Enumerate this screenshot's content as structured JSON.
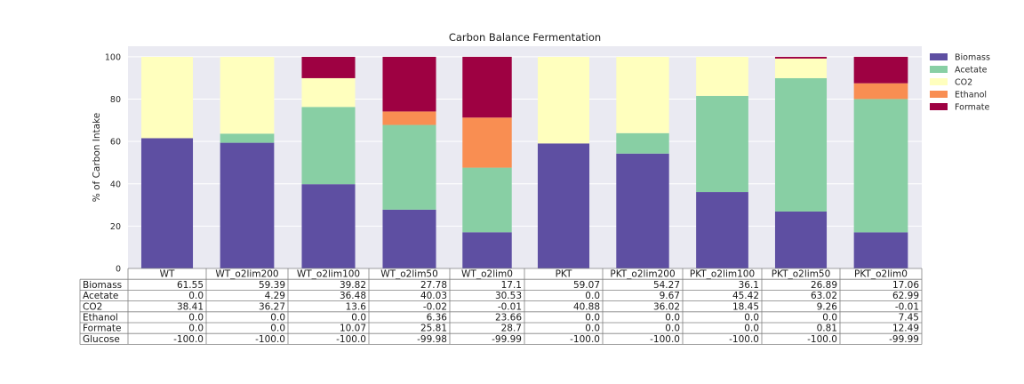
{
  "chart_data": {
    "type": "bar",
    "stacked": true,
    "title": "Carbon Balance Fermentation",
    "ylabel": "% of Carbon Intake",
    "ylim": [
      0,
      105
    ],
    "yticks": [
      "0",
      "20",
      "40",
      "60",
      "80",
      "100"
    ],
    "grid": true,
    "legend_position": "outside-top-right",
    "categories": [
      "WT",
      "WT_o2lim200",
      "WT_o2lim100",
      "WT_o2lim50",
      "WT_o2lim0",
      "PKT",
      "PKT_o2lim200",
      "PKT_o2lim100",
      "PKT_o2lim50",
      "PKT_o2lim0"
    ],
    "series": [
      {
        "name": "Biomass",
        "color": "#5e4fa2",
        "values": [
          61.55,
          59.39,
          39.82,
          27.78,
          17.1,
          59.07,
          54.27,
          36.1,
          26.89,
          17.06
        ]
      },
      {
        "name": "Acetate",
        "color": "#88cfa4",
        "values": [
          0.0,
          4.29,
          36.48,
          40.03,
          30.53,
          0.0,
          9.67,
          45.42,
          63.02,
          62.99
        ]
      },
      {
        "name": "CO2",
        "color": "#ffffbe",
        "values": [
          38.41,
          36.27,
          13.6,
          -0.02,
          -0.01,
          40.88,
          36.02,
          18.45,
          9.26,
          -0.01
        ]
      },
      {
        "name": "Ethanol",
        "color": "#f98e52",
        "values": [
          0.0,
          0.0,
          0.0,
          6.36,
          23.66,
          0.0,
          0.0,
          0.0,
          0.0,
          7.45
        ]
      },
      {
        "name": "Formate",
        "color": "#9e0142",
        "values": [
          0.0,
          0.0,
          10.07,
          25.81,
          28.7,
          0.0,
          0.0,
          0.0,
          0.81,
          12.49
        ]
      }
    ],
    "table": {
      "col_labels": [
        "WT",
        "WT_o2lim200",
        "WT_o2lim100",
        "WT_o2lim50",
        "WT_o2lim0",
        "PKT",
        "PKT_o2lim200",
        "PKT_o2lim100",
        "PKT_o2lim50",
        "PKT_o2lim0"
      ],
      "rows": [
        {
          "label": "Biomass",
          "cells": [
            "61.55",
            "59.39",
            "39.82",
            "27.78",
            "17.1",
            "59.07",
            "54.27",
            "36.1",
            "26.89",
            "17.06"
          ]
        },
        {
          "label": "Acetate",
          "cells": [
            "0.0",
            "4.29",
            "36.48",
            "40.03",
            "30.53",
            "0.0",
            "9.67",
            "45.42",
            "63.02",
            "62.99"
          ]
        },
        {
          "label": "CO2",
          "cells": [
            "38.41",
            "36.27",
            "13.6",
            "-0.02",
            "-0.01",
            "40.88",
            "36.02",
            "18.45",
            "9.26",
            "-0.01"
          ]
        },
        {
          "label": "Ethanol",
          "cells": [
            "0.0",
            "0.0",
            "0.0",
            "6.36",
            "23.66",
            "0.0",
            "0.0",
            "0.0",
            "0.0",
            "7.45"
          ]
        },
        {
          "label": "Formate",
          "cells": [
            "0.0",
            "0.0",
            "10.07",
            "25.81",
            "28.7",
            "0.0",
            "0.0",
            "0.0",
            "0.81",
            "12.49"
          ]
        },
        {
          "label": "Glucose",
          "cells": [
            "-100.0",
            "-100.0",
            "-100.0",
            "-99.98",
            "-99.99",
            "-100.0",
            "-100.0",
            "-100.0",
            "-100.0",
            "-99.99"
          ]
        }
      ]
    }
  }
}
